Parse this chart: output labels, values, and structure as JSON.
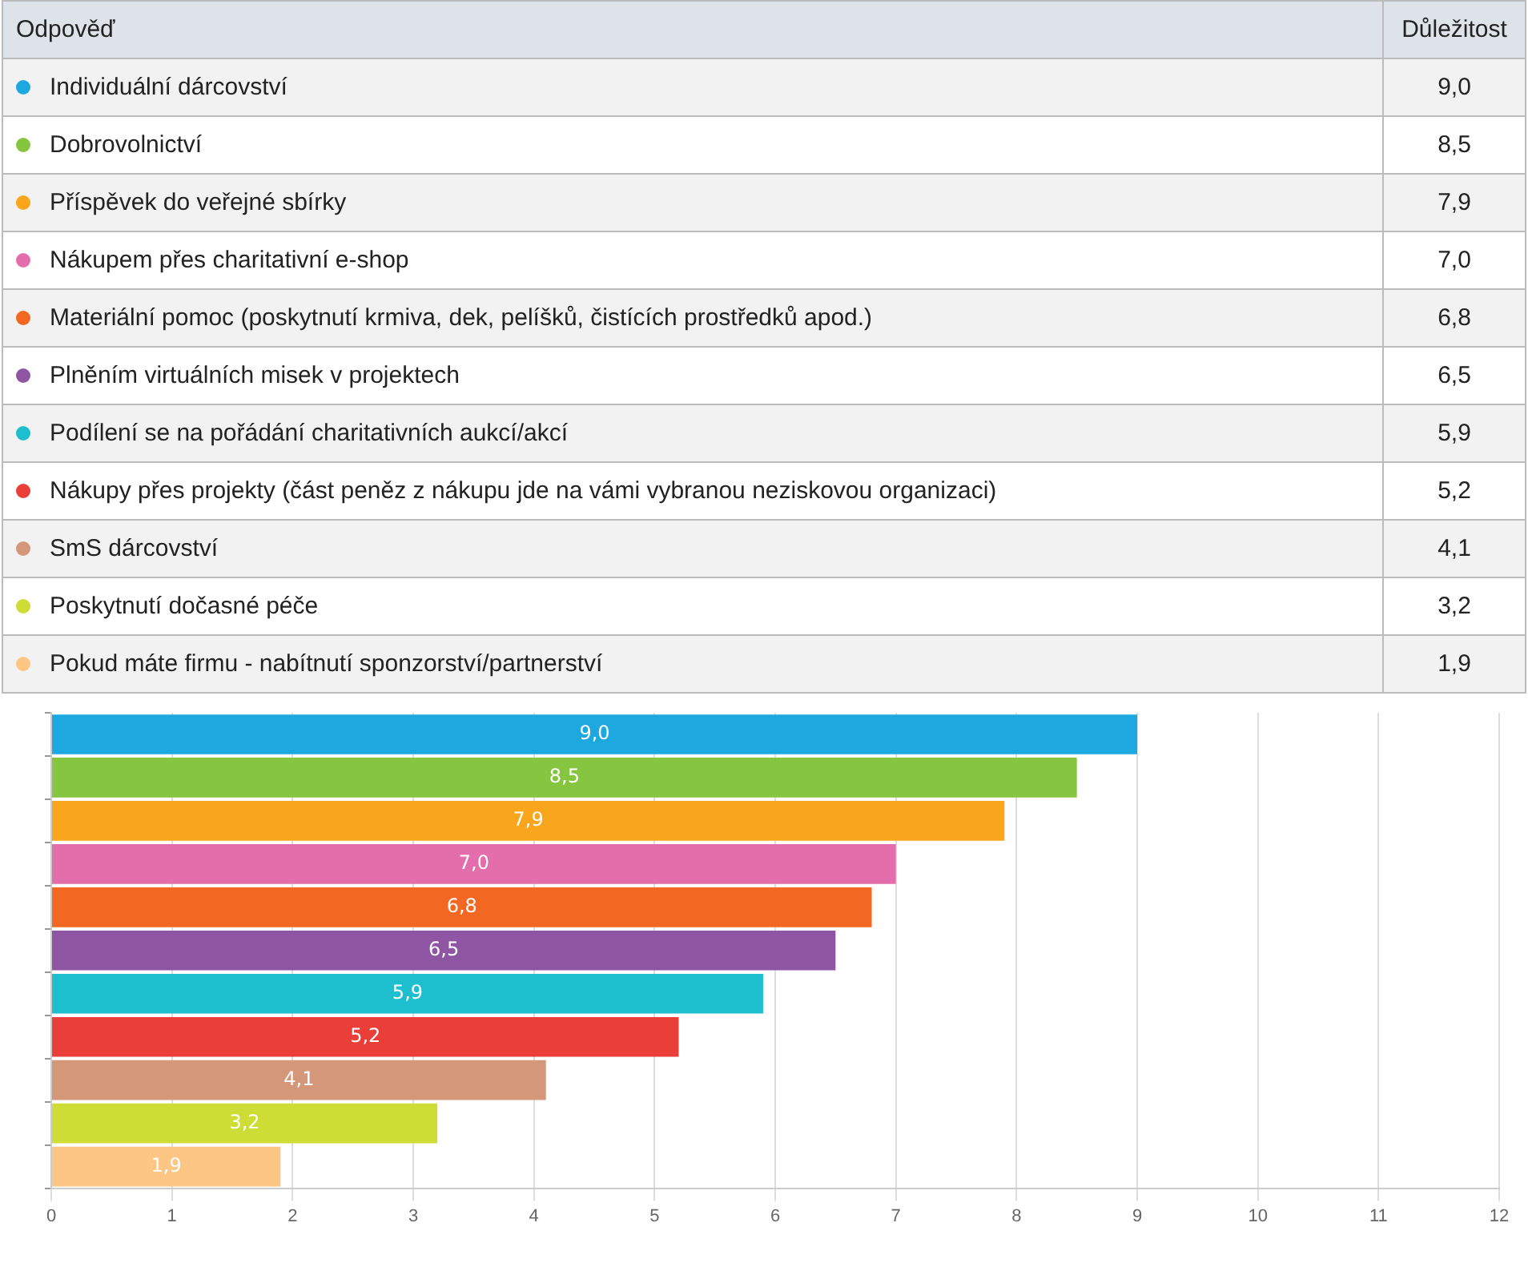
{
  "chart_data": {
    "type": "bar",
    "orientation": "horizontal",
    "stacked": true,
    "legend_title": "Odpověď",
    "annotations": [
      "Důležitost"
    ],
    "categories": [
      null,
      null,
      null,
      null,
      null,
      null,
      null,
      null,
      null,
      null,
      null
    ],
    "series": [
      {
        "name": "Individuální dárcovství",
        "color": "#1ea8e0",
        "values": [
          9.0,
          null,
          null,
          null,
          null,
          null,
          null,
          null,
          null,
          null,
          null
        ],
        "value_labels": [
          "9,0",
          null,
          null,
          null,
          null,
          null,
          null,
          null,
          null,
          null,
          null
        ]
      },
      {
        "name": "Dobrovolnictví",
        "color": "#85c540",
        "values": [
          null,
          8.5,
          null,
          null,
          null,
          null,
          null,
          null,
          null,
          null,
          null
        ],
        "value_labels": [
          null,
          "8,5",
          null,
          null,
          null,
          null,
          null,
          null,
          null,
          null,
          null
        ]
      },
      {
        "name": "Příspěvek do veřejné sbírky",
        "color": "#f9a61c",
        "values": [
          null,
          null,
          7.9,
          null,
          null,
          null,
          null,
          null,
          null,
          null,
          null
        ],
        "value_labels": [
          null,
          null,
          "7,9",
          null,
          null,
          null,
          null,
          null,
          null,
          null,
          null
        ]
      },
      {
        "name": "Nákupem přes charitativní e-shop",
        "color": "#e46eab",
        "values": [
          null,
          null,
          null,
          7.0,
          null,
          null,
          null,
          null,
          null,
          null,
          null
        ],
        "value_labels": [
          null,
          null,
          null,
          "7,0",
          null,
          null,
          null,
          null,
          null,
          null,
          null
        ]
      },
      {
        "name": "Materiální pomoc (poskytnutí krmiva, dek, pelíšků, čistících prostředků apod.)",
        "color": "#f26722",
        "values": [
          null,
          null,
          null,
          null,
          6.8,
          null,
          null,
          null,
          null,
          null,
          null
        ],
        "value_labels": [
          null,
          null,
          null,
          null,
          "6,8",
          null,
          null,
          null,
          null,
          null,
          null
        ]
      },
      {
        "name": "Plněním virtuálních misek v projektech",
        "color": "#8e55a2",
        "values": [
          null,
          null,
          null,
          null,
          null,
          6.5,
          null,
          null,
          null,
          null,
          null
        ],
        "value_labels": [
          null,
          null,
          null,
          null,
          null,
          "6,5",
          null,
          null,
          null,
          null,
          null
        ]
      },
      {
        "name": "Podílení se na pořádání charitativních aukcí/akcí",
        "color": "#1dbfcf",
        "values": [
          null,
          null,
          null,
          null,
          null,
          null,
          5.9,
          null,
          null,
          null,
          null
        ],
        "value_labels": [
          null,
          null,
          null,
          null,
          null,
          null,
          "5,9",
          null,
          null,
          null,
          null
        ]
      },
      {
        "name": "Nákupy přes projekty (část peněz z nákupu jde na vámi vybranou neziskovou organizaci)",
        "color": "#ea3e38",
        "values": [
          null,
          null,
          null,
          null,
          null,
          null,
          null,
          5.2,
          null,
          null,
          null
        ],
        "value_labels": [
          null,
          null,
          null,
          null,
          null,
          null,
          null,
          "5,2",
          null,
          null,
          null
        ]
      },
      {
        "name": "SmS dárcovství",
        "color": "#d4977a",
        "values": [
          null,
          null,
          null,
          null,
          null,
          null,
          null,
          null,
          4.1,
          null,
          null
        ],
        "value_labels": [
          null,
          null,
          null,
          null,
          null,
          null,
          null,
          null,
          "4,1",
          null,
          null
        ]
      },
      {
        "name": "Poskytnutí dočasné péče",
        "color": "#cddd36",
        "values": [
          null,
          null,
          null,
          null,
          null,
          null,
          null,
          null,
          null,
          3.2,
          null
        ],
        "value_labels": [
          null,
          null,
          null,
          null,
          null,
          null,
          null,
          null,
          null,
          "3,2",
          null
        ]
      },
      {
        "name": "Pokud máte firmu - nabítnutí sponzorství/partnerství",
        "color": "#fdc684",
        "values": [
          null,
          null,
          null,
          null,
          null,
          null,
          null,
          null,
          null,
          null,
          1.9
        ],
        "value_labels": [
          null,
          null,
          null,
          null,
          null,
          null,
          null,
          null,
          null,
          null,
          "1,9"
        ]
      }
    ],
    "xlim": [
      0,
      12
    ],
    "xticks": [
      0,
      1,
      2,
      3,
      4,
      5,
      6,
      7,
      8,
      9,
      10,
      11,
      12
    ],
    "grid": "x",
    "legend": "top",
    "tick_labels": "x"
  }
}
